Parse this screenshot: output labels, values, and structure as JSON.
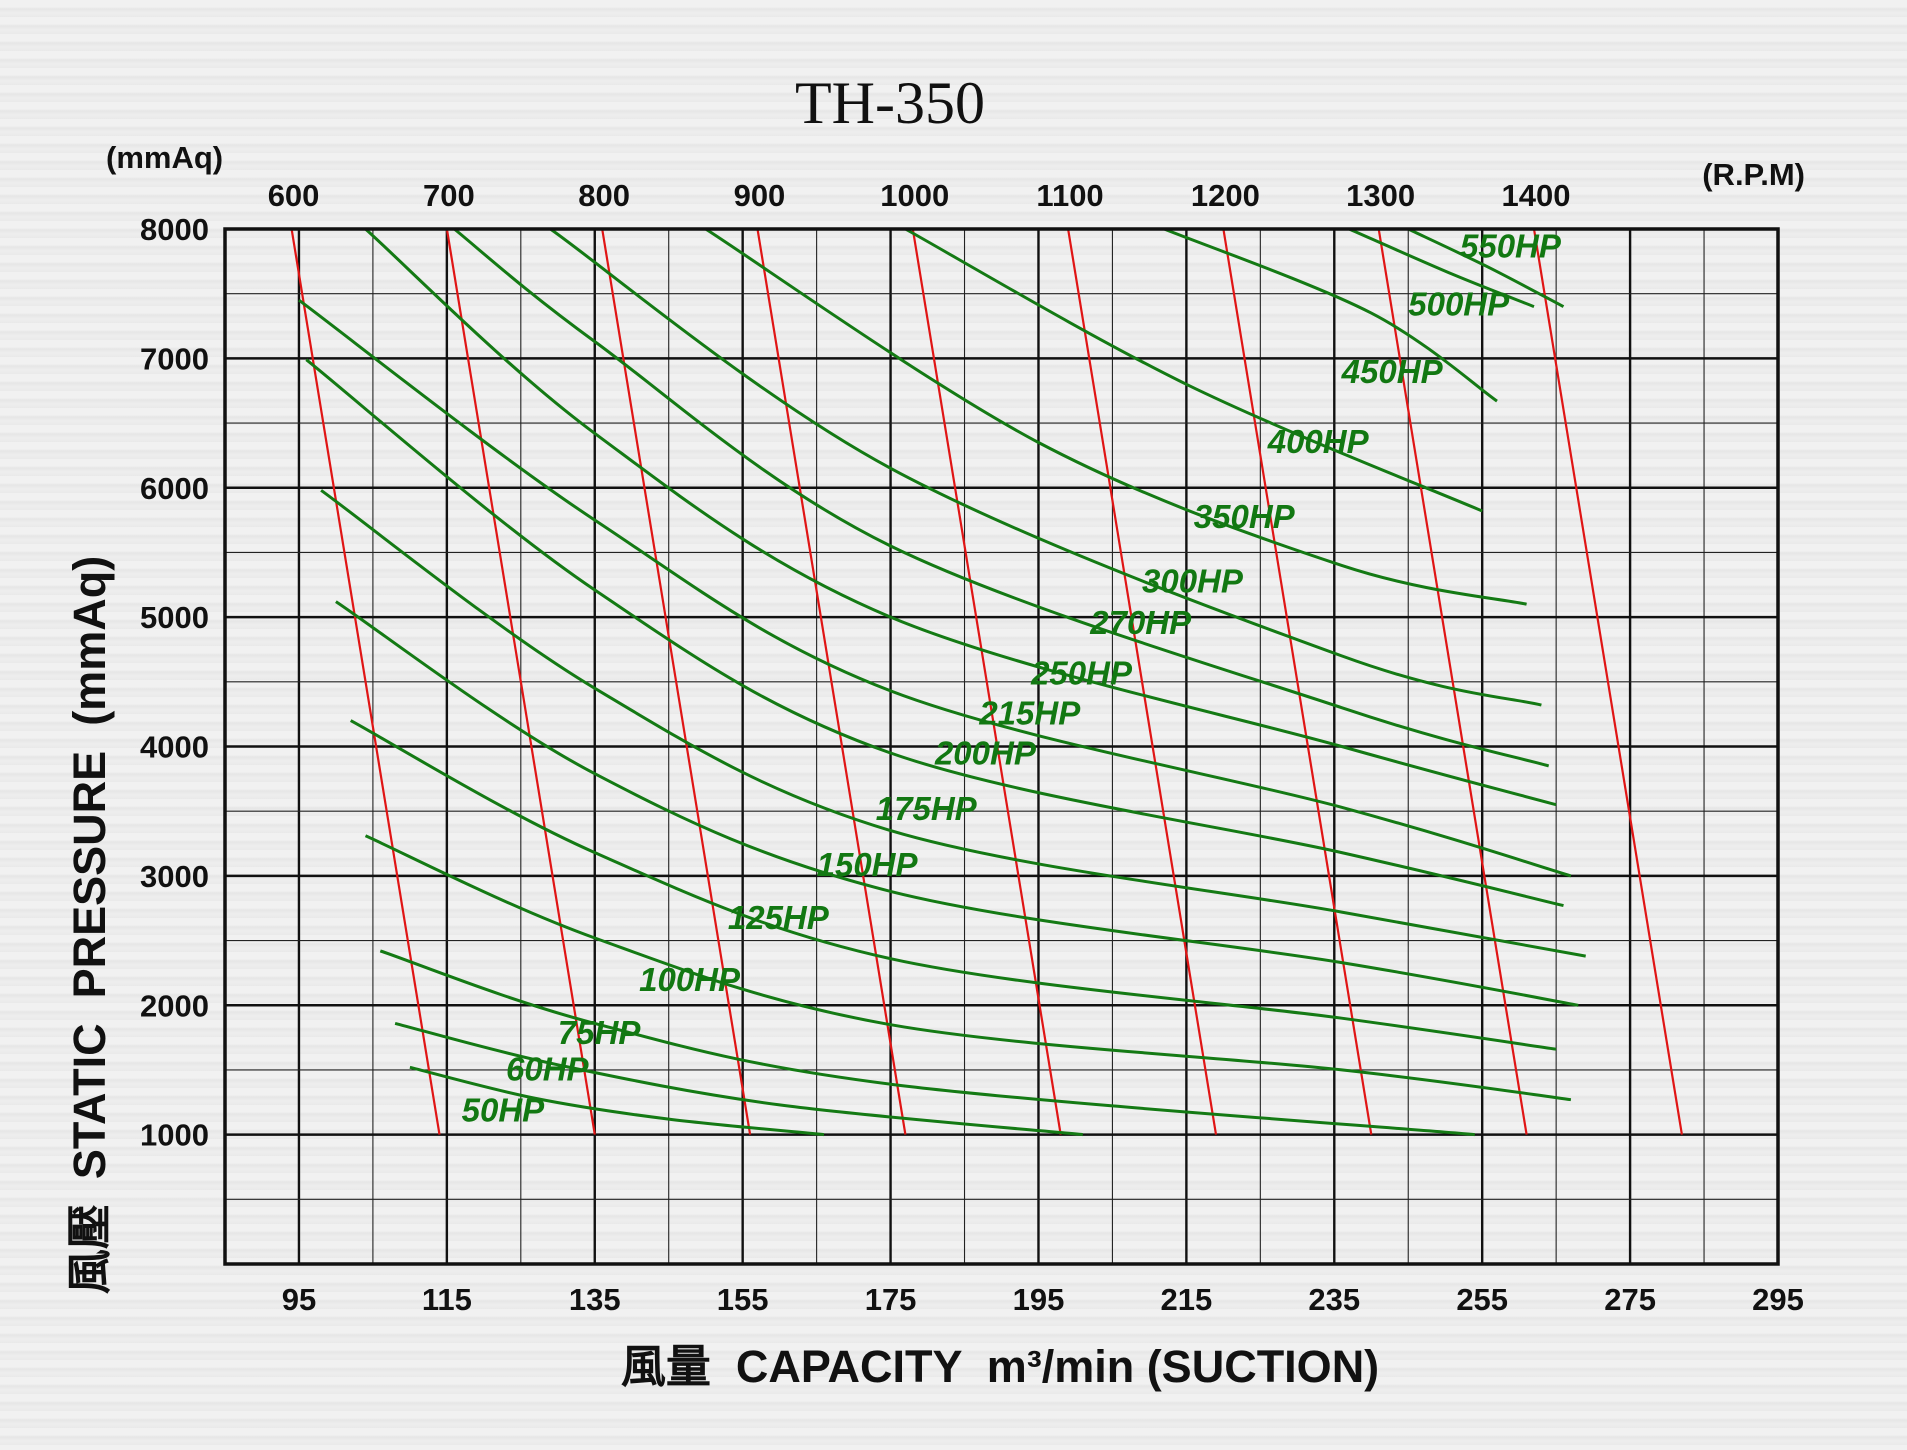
{
  "chart_data": {
    "type": "line",
    "title": "TH-350",
    "y_unit": "(mmAq)",
    "rpm_unit": "(R.P.M)",
    "ylabel": "風壓  STATIC  PRESSURE  (mmAq)",
    "xlabel": "風量  CAPACITY  m³/min (SUCTION)",
    "x_ticks": [
      "95",
      "115",
      "135",
      "155",
      "175",
      "195",
      "215",
      "235",
      "255",
      "275",
      "295"
    ],
    "y_ticks": [
      "1000",
      "2000",
      "3000",
      "4000",
      "5000",
      "6000",
      "7000",
      "8000"
    ],
    "rpm_ticks": [
      "600",
      "700",
      "800",
      "900",
      "1000",
      "1100",
      "1200",
      "1300",
      "1400"
    ],
    "xlim": [
      85,
      295
    ],
    "ylim": [
      0,
      8000
    ],
    "grid": true,
    "rpm_series": [
      {
        "name": "600",
        "points": [
          [
            94,
            8000
          ],
          [
            114,
            1000
          ]
        ]
      },
      {
        "name": "700",
        "points": [
          [
            115,
            8000
          ],
          [
            135,
            1000
          ]
        ]
      },
      {
        "name": "800",
        "points": [
          [
            136,
            8000
          ],
          [
            156,
            1000
          ]
        ]
      },
      {
        "name": "900",
        "points": [
          [
            157,
            8000
          ],
          [
            177,
            1000
          ]
        ]
      },
      {
        "name": "1000",
        "points": [
          [
            178,
            8000
          ],
          [
            198,
            1000
          ]
        ]
      },
      {
        "name": "1100",
        "points": [
          [
            199,
            8000
          ],
          [
            219,
            1000
          ]
        ]
      },
      {
        "name": "1200",
        "points": [
          [
            220,
            8000
          ],
          [
            240,
            1000
          ]
        ]
      },
      {
        "name": "1300",
        "points": [
          [
            241,
            8000
          ],
          [
            261,
            1000
          ]
        ]
      },
      {
        "name": "1400",
        "points": [
          [
            262,
            8000
          ],
          [
            282,
            1000
          ]
        ]
      }
    ],
    "hp_series": [
      {
        "name": "50HP",
        "points": [
          [
            110,
            1520
          ],
          [
            127,
            1280
          ],
          [
            145,
            1120
          ],
          [
            166,
            1000
          ]
        ]
      },
      {
        "name": "60HP",
        "points": [
          [
            108,
            1860
          ],
          [
            130,
            1540
          ],
          [
            160,
            1230
          ],
          [
            201,
            1000
          ]
        ]
      },
      {
        "name": "75HP",
        "points": [
          [
            106,
            2420
          ],
          [
            135,
            1860
          ],
          [
            175,
            1390
          ],
          [
            254,
            1000
          ]
        ]
      },
      {
        "name": "100HP",
        "points": [
          [
            104,
            3310
          ],
          [
            135,
            2520
          ],
          [
            175,
            1850
          ],
          [
            236,
            1500
          ],
          [
            267,
            1270
          ]
        ]
      },
      {
        "name": "125HP",
        "points": [
          [
            102,
            4200
          ],
          [
            135,
            3180
          ],
          [
            175,
            2360
          ],
          [
            236,
            1900
          ],
          [
            265,
            1660
          ]
        ]
      },
      {
        "name": "150HP",
        "points": [
          [
            100,
            5120
          ],
          [
            135,
            3790
          ],
          [
            175,
            2880
          ],
          [
            236,
            2330
          ],
          [
            268,
            2000
          ]
        ]
      },
      {
        "name": "175HP",
        "points": [
          [
            98,
            5980
          ],
          [
            135,
            4450
          ],
          [
            175,
            3350
          ],
          [
            236,
            2720
          ],
          [
            269,
            2380
          ]
        ]
      },
      {
        "name": "200HP",
        "points": [
          [
            96,
            6990
          ],
          [
            135,
            5210
          ],
          [
            175,
            3950
          ],
          [
            236,
            3180
          ],
          [
            266,
            2770
          ]
        ]
      },
      {
        "name": "215HP",
        "points": [
          [
            95,
            7450
          ],
          [
            135,
            5750
          ],
          [
            175,
            4430
          ],
          [
            236,
            3530
          ],
          [
            267,
            3000
          ]
        ]
      },
      {
        "name": "250HP",
        "points": [
          [
            104,
            8000
          ],
          [
            135,
            6420
          ],
          [
            175,
            5000
          ],
          [
            236,
            4000
          ],
          [
            265,
            3550
          ]
        ]
      },
      {
        "name": "270HP",
        "points": [
          [
            116,
            8000
          ],
          [
            135,
            7130
          ],
          [
            175,
            5550
          ],
          [
            236,
            4300
          ],
          [
            264,
            3850
          ]
        ]
      },
      {
        "name": "300HP",
        "points": [
          [
            129,
            8000
          ],
          [
            175,
            6150
          ],
          [
            236,
            4700
          ],
          [
            263,
            4320
          ]
        ]
      },
      {
        "name": "350HP",
        "points": [
          [
            150,
            8000
          ],
          [
            195,
            6350
          ],
          [
            236,
            5400
          ],
          [
            261,
            5100
          ]
        ]
      },
      {
        "name": "400HP",
        "points": [
          [
            177,
            8000
          ],
          [
            215,
            6800
          ],
          [
            255,
            5820
          ]
        ]
      },
      {
        "name": "450HP",
        "points": [
          [
            212,
            8000
          ],
          [
            240,
            7350
          ],
          [
            257,
            6670
          ]
        ]
      },
      {
        "name": "500HP",
        "points": [
          [
            237,
            8000
          ],
          [
            251,
            7650
          ],
          [
            262,
            7400
          ]
        ]
      },
      {
        "name": "550HP",
        "points": [
          [
            245,
            8000
          ],
          [
            256,
            7700
          ],
          [
            266,
            7400
          ]
        ]
      }
    ],
    "hp_labels": [
      {
        "text": "550HP",
        "x": 252,
        "y": 7780
      },
      {
        "text": "500HP",
        "x": 245,
        "y": 7330
      },
      {
        "text": "450HP",
        "x": 236,
        "y": 6810
      },
      {
        "text": "400HP",
        "x": 226,
        "y": 6270
      },
      {
        "text": "350HP",
        "x": 216,
        "y": 5690
      },
      {
        "text": "300HP",
        "x": 209,
        "y": 5190
      },
      {
        "text": "270HP",
        "x": 202,
        "y": 4870
      },
      {
        "text": "250HP",
        "x": 194,
        "y": 4480
      },
      {
        "text": "215HP",
        "x": 187,
        "y": 4170
      },
      {
        "text": "200HP",
        "x": 181,
        "y": 3860
      },
      {
        "text": "175HP",
        "x": 173,
        "y": 3430
      },
      {
        "text": "150HP",
        "x": 165,
        "y": 3000
      },
      {
        "text": "125HP",
        "x": 153,
        "y": 2590
      },
      {
        "text": "100HP",
        "x": 141,
        "y": 2110
      },
      {
        "text": "75HP",
        "x": 130,
        "y": 1700
      },
      {
        "text": "60HP",
        "x": 123,
        "y": 1420
      },
      {
        "text": "50HP",
        "x": 117,
        "y": 1100
      }
    ],
    "colors": {
      "rpm": "#e01515",
      "hp": "#147a14",
      "grid": "#111111"
    }
  }
}
